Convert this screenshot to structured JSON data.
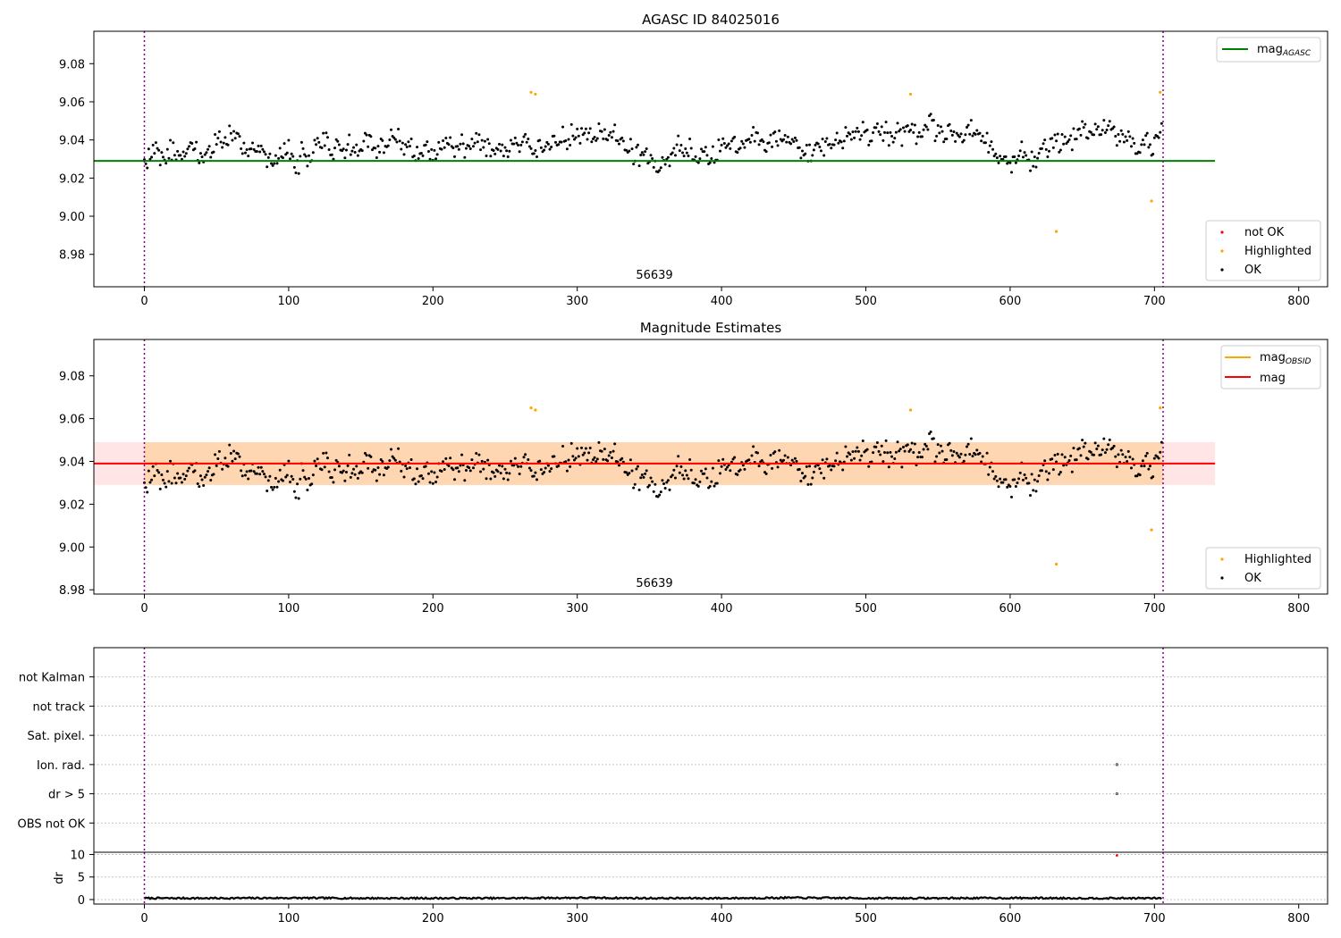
{
  "figure": {
    "panels": {
      "top": {
        "title": "AGASC ID 84025016",
        "obsid_label": "56639"
      },
      "middle": {
        "title": "Magnitude Estimates",
        "obsid_label": "56639"
      },
      "flags": {
        "ylabel": "",
        "rows": [
          "not Kalman",
          "not track",
          "Sat. pixel.",
          "Ion. rad.",
          "dr > 5",
          "OBS not OK"
        ]
      },
      "dr": {
        "ylabel": "dr"
      }
    },
    "legends": {
      "top_lines": [
        {
          "label": "mag",
          "sub": "AGASC",
          "color": "#008000"
        }
      ],
      "top_points": [
        {
          "label": "not OK",
          "color": "#ff0000"
        },
        {
          "label": "Highlighted",
          "color": "#ffa500"
        },
        {
          "label": "OK",
          "color": "#000000"
        }
      ],
      "middle_lines": [
        {
          "label": "mag",
          "sub": "OBSID",
          "color": "#ffa500"
        },
        {
          "label": "mag",
          "sub": "",
          "color": "#ff0000"
        }
      ],
      "middle_points": [
        {
          "label": "Highlighted",
          "color": "#ffa500"
        },
        {
          "label": "OK",
          "color": "#000000"
        }
      ]
    }
  },
  "chart_data": [
    {
      "type": "scatter",
      "title": "AGASC ID 84025016",
      "xlim": [
        -35,
        820
      ],
      "ylim": [
        8.963,
        9.097
      ],
      "xticks": [
        0,
        100,
        200,
        300,
        400,
        500,
        600,
        700,
        800
      ],
      "yticks": [
        8.98,
        9.0,
        9.02,
        9.04,
        9.06,
        9.08
      ],
      "mag_agasc": 9.029,
      "line_x_range": [
        -35,
        742
      ],
      "obs_boundaries": [
        0,
        706
      ],
      "series": [
        {
          "name": "OK",
          "color": "#000000",
          "profile_x": [
            0,
            20,
            40,
            60,
            80,
            100,
            120,
            140,
            160,
            180,
            200,
            220,
            240,
            260,
            280,
            300,
            320,
            340,
            360,
            380,
            400,
            420,
            440,
            460,
            480,
            500,
            520,
            540,
            560,
            580,
            600,
            620,
            640,
            660,
            680,
            705
          ],
          "profile_y": [
            9.03,
            9.032,
            9.036,
            9.038,
            9.035,
            9.031,
            9.035,
            9.037,
            9.036,
            9.04,
            9.034,
            9.038,
            9.035,
            9.04,
            9.038,
            9.042,
            9.044,
            9.035,
            9.03,
            9.034,
            9.036,
            9.039,
            9.042,
            9.034,
            9.041,
            9.044,
            9.042,
            9.046,
            9.043,
            9.04,
            9.028,
            9.033,
            9.038,
            9.047,
            9.04,
            9.04
          ],
          "spread": 0.01,
          "n_points": 706,
          "y_min_clip": 9.015,
          "y_max_clip": 9.063
        },
        {
          "name": "Highlighted",
          "color": "#ffa500",
          "points": [
            [
              268,
              9.065
            ],
            [
              271,
              9.064
            ],
            [
              531,
              9.064
            ],
            [
              632,
              8.992
            ],
            [
              698,
              9.008
            ],
            [
              704,
              9.065
            ]
          ]
        },
        {
          "name": "not OK",
          "color": "#ff0000",
          "points": []
        }
      ]
    },
    {
      "type": "scatter",
      "title": "Magnitude Estimates",
      "xlim": [
        -35,
        820
      ],
      "ylim": [
        8.978,
        9.097
      ],
      "xticks": [
        0,
        100,
        200,
        300,
        400,
        500,
        600,
        700,
        800
      ],
      "yticks": [
        8.98,
        9.0,
        9.02,
        9.04,
        9.06,
        9.08
      ],
      "mag": 9.039,
      "mag_band": [
        9.029,
        9.049
      ],
      "mag_obsid": 9.039,
      "mag_obsid_band": [
        9.029,
        9.049
      ],
      "line_x_range": [
        -35,
        742
      ],
      "obs_boundaries": [
        0,
        706
      ]
    },
    {
      "type": "scatter",
      "title": "",
      "categories": [
        "OBS not OK",
        "dr > 5",
        "Ion. rad.",
        "Sat. pixel.",
        "not track",
        "not Kalman"
      ],
      "xlim": [
        -35,
        820
      ],
      "points": [
        [
          674,
          "Ion. rad."
        ],
        [
          674,
          "dr > 5"
        ]
      ],
      "obs_boundaries": [
        0,
        706
      ]
    },
    {
      "type": "line",
      "ylabel": "dr",
      "xlim": [
        -35,
        820
      ],
      "ylim": [
        -1,
        10.5
      ],
      "xticks": [
        0,
        100,
        200,
        300,
        400,
        500,
        600,
        700,
        800
      ],
      "yticks": [
        0,
        5,
        10
      ],
      "profile_x": [
        0,
        50,
        100,
        150,
        200,
        250,
        300,
        350,
        400,
        450,
        500,
        550,
        600,
        650,
        700,
        705
      ],
      "profile_y": [
        0.3,
        0.3,
        0.35,
        0.3,
        0.3,
        0.3,
        0.4,
        0.3,
        0.3,
        0.4,
        0.3,
        0.3,
        0.35,
        0.3,
        0.3,
        0.3
      ],
      "outlier": [
        674,
        9.8
      ],
      "obs_boundaries": [
        0,
        706
      ]
    }
  ]
}
